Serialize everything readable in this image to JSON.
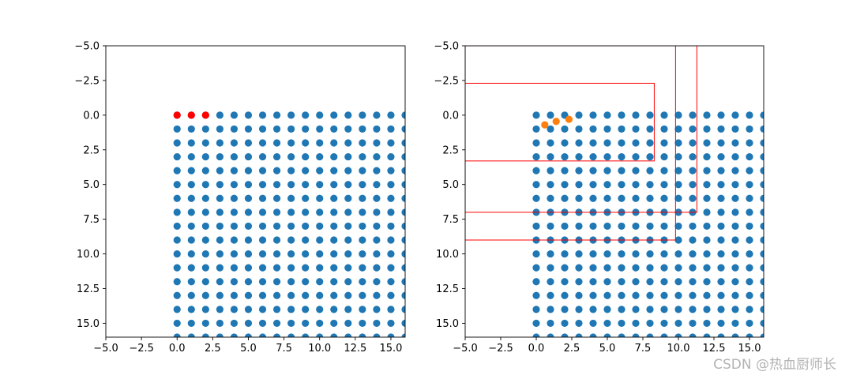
{
  "chart_data": [
    {
      "type": "scatter",
      "title": "",
      "xlabel": "",
      "ylabel": "",
      "xlim": [
        -5,
        16
      ],
      "ylim": [
        16,
        -5
      ],
      "y_inverted": true,
      "grid": false,
      "xticks": [
        -5.0,
        -2.5,
        0.0,
        2.5,
        5.0,
        7.5,
        10.0,
        12.5,
        15.0
      ],
      "yticks": [
        -5.0,
        -2.5,
        0.0,
        2.5,
        5.0,
        7.5,
        10.0,
        12.5,
        15.0
      ],
      "xtick_labels": [
        "−5.0",
        "−2.5",
        "0.0",
        "2.5",
        "5.0",
        "7.5",
        "10.0",
        "12.5",
        "15.0"
      ],
      "ytick_labels": [
        "−5.0",
        "−2.5",
        "0.0",
        "2.5",
        "5.0",
        "7.5",
        "10.0",
        "12.5",
        "15.0"
      ],
      "series": [
        {
          "color": "#1f77b4",
          "grid_points": {
            "x_start": 0,
            "x_end": 16,
            "y_start": 0,
            "y_end": 16,
            "step": 1
          }
        },
        {
          "color": "#ff0000",
          "points": [
            [
              0,
              0
            ],
            [
              1,
              0
            ],
            [
              2,
              0
            ]
          ]
        }
      ]
    },
    {
      "type": "scatter",
      "title": "",
      "xlabel": "",
      "ylabel": "",
      "xlim": [
        -5,
        16
      ],
      "ylim": [
        16,
        -5
      ],
      "y_inverted": true,
      "grid": false,
      "xticks": [
        -5.0,
        -2.5,
        0.0,
        2.5,
        5.0,
        7.5,
        10.0,
        12.5,
        15.0
      ],
      "yticks": [
        -5.0,
        -2.5,
        0.0,
        2.5,
        5.0,
        7.5,
        10.0,
        12.5,
        15.0
      ],
      "xtick_labels": [
        "−5.0",
        "−2.5",
        "0.0",
        "2.5",
        "5.0",
        "7.5",
        "10.0",
        "12.5",
        "15.0"
      ],
      "ytick_labels": [
        "−5.0",
        "−2.5",
        "0.0",
        "2.5",
        "5.0",
        "7.5",
        "10.0",
        "12.5",
        "15.0"
      ],
      "series": [
        {
          "color": "#1f77b4",
          "grid_points": {
            "x_start": 0,
            "x_end": 16,
            "y_start": 0,
            "y_end": 16,
            "step": 1
          }
        },
        {
          "color": "#ff7f0e",
          "points": [
            [
              0.6,
              0.7
            ],
            [
              1.4,
              0.45
            ],
            [
              2.3,
              0.3
            ]
          ]
        }
      ],
      "rectangles": [
        {
          "color": "#ff0000",
          "x0": -5,
          "y0": -2.3,
          "x1": 8.3,
          "y1": 3.3
        },
        {
          "color": "#ff0000",
          "x0": -5,
          "y0": -5,
          "x1": 9.8,
          "y1": 9.0
        },
        {
          "color": "#ff0000",
          "x0": -5,
          "y0": -5,
          "x1": 11.3,
          "y1": 7.0
        }
      ]
    }
  ],
  "watermark": "CSDN @热血厨师长"
}
